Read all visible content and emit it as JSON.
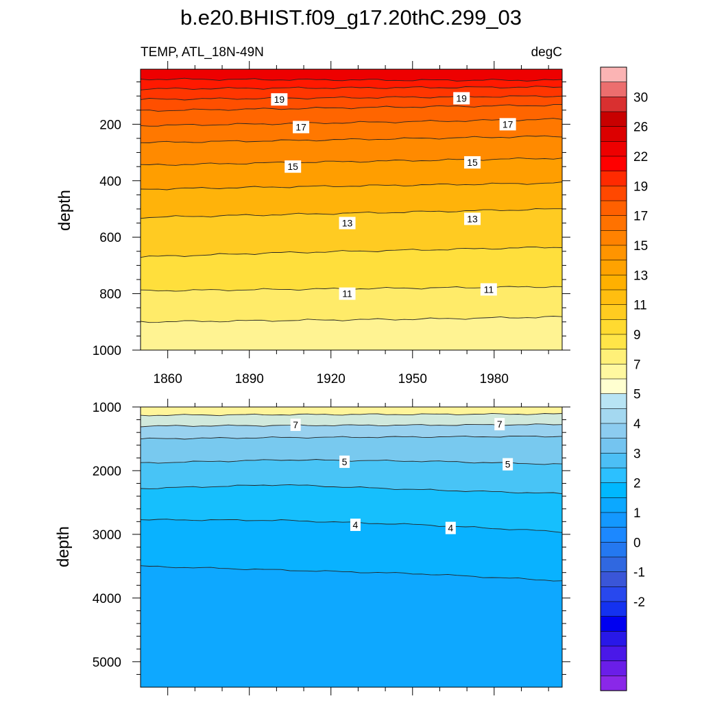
{
  "title": "b.e20.BHIST.f09_g17.20thC.299_03",
  "chart_data": [
    {
      "type": "heatmap",
      "panel": "upper",
      "title_left": "TEMP, ATL_18N-49N",
      "title_right": "degC",
      "xlabel": "",
      "ylabel": "depth",
      "xlim": [
        1850,
        2005
      ],
      "ylim": [
        1000,
        5
      ],
      "x_ticks": [
        "1860",
        "1890",
        "1920",
        "1950",
        "1980"
      ],
      "y_ticks": [
        "200",
        "400",
        "600",
        "800",
        "1000"
      ],
      "contour_levels": [
        22,
        21,
        20,
        19,
        18,
        17,
        16,
        15,
        14,
        13,
        12,
        11,
        10,
        9
      ],
      "contour_lines": [
        {
          "level": 21,
          "depth": [
            40,
            42,
            44,
            44
          ]
        },
        {
          "level": 20,
          "depth": [
            75,
            72,
            70,
            68
          ]
        },
        {
          "level": 19,
          "depth": [
            112,
            108,
            104,
            100
          ]
        },
        {
          "level": 18,
          "depth": [
            152,
            145,
            138,
            132
          ]
        },
        {
          "level": 17,
          "depth": [
            205,
            198,
            190,
            182
          ]
        },
        {
          "level": 16,
          "depth": [
            265,
            258,
            250,
            242
          ]
        },
        {
          "level": 15,
          "depth": [
            345,
            336,
            328,
            320
          ]
        },
        {
          "level": 14,
          "depth": [
            430,
            422,
            415,
            408
          ]
        },
        {
          "level": 13,
          "depth": [
            530,
            520,
            510,
            500
          ]
        },
        {
          "level": 12,
          "depth": [
            670,
            655,
            645,
            635
          ]
        },
        {
          "level": 11,
          "depth": [
            790,
            785,
            780,
            775
          ]
        },
        {
          "level": 10,
          "depth": [
            900,
            895,
            890,
            882
          ]
        }
      ],
      "contour_labels": [
        {
          "text": "19",
          "year": 1901,
          "depth": 112
        },
        {
          "text": "19",
          "year": 1968,
          "depth": 108
        },
        {
          "text": "17",
          "year": 1909,
          "depth": 210
        },
        {
          "text": "17",
          "year": 1985,
          "depth": 200
        },
        {
          "text": "15",
          "year": 1906,
          "depth": 350
        },
        {
          "text": "15",
          "year": 1972,
          "depth": 335
        },
        {
          "text": "13",
          "year": 1926,
          "depth": 550
        },
        {
          "text": "13",
          "year": 1972,
          "depth": 535
        },
        {
          "text": "11",
          "year": 1926,
          "depth": 800
        },
        {
          "text": "11",
          "year": 1978,
          "depth": 785
        }
      ]
    },
    {
      "type": "heatmap",
      "panel": "lower",
      "xlabel": "",
      "ylabel": "depth",
      "xlim": [
        1850,
        2005
      ],
      "ylim": [
        5400,
        1000
      ],
      "y_ticks": [
        "1000",
        "2000",
        "3000",
        "4000",
        "5000"
      ],
      "contour_levels": [
        8,
        7,
        6,
        5,
        4.5,
        4,
        3.5
      ],
      "contour_lines": [
        {
          "level": 8,
          "depth": [
            1130,
            1120,
            1115,
            1110
          ]
        },
        {
          "level": 7,
          "depth": [
            1300,
            1290,
            1285,
            1275
          ]
        },
        {
          "level": 6,
          "depth": [
            1500,
            1480,
            1470,
            1460
          ]
        },
        {
          "level": 5,
          "depth": [
            1880,
            1830,
            1850,
            1900
          ]
        },
        {
          "level": 4.5,
          "depth": [
            2280,
            2220,
            2300,
            2360
          ]
        },
        {
          "level": 4,
          "depth": [
            2770,
            2780,
            2850,
            2960
          ]
        },
        {
          "level": 3.5,
          "depth": [
            3500,
            3560,
            3620,
            3730
          ]
        }
      ],
      "contour_labels": [
        {
          "text": "7",
          "year": 1907,
          "depth": 1280
        },
        {
          "text": "7",
          "year": 1982,
          "depth": 1270
        },
        {
          "text": "5",
          "year": 1925,
          "depth": 1860
        },
        {
          "text": "5",
          "year": 1985,
          "depth": 1900
        },
        {
          "text": "4",
          "year": 1929,
          "depth": 2850
        },
        {
          "text": "4",
          "year": 1964,
          "depth": 2900
        }
      ]
    }
  ],
  "colorbar": {
    "tick_labels": [
      "30",
      "26",
      "22",
      "19",
      "17",
      "15",
      "13",
      "11",
      "9",
      "7",
      "5",
      "4",
      "3",
      "2",
      "1",
      "0",
      "-1",
      "-2"
    ],
    "colors": [
      "#fbb4b4",
      "#ec6e6e",
      "#d93030",
      "#c80000",
      "#dc0000",
      "#ee0000",
      "#ff0000",
      "#ff2a00",
      "#ff4800",
      "#ff6000",
      "#ff7200",
      "#ff8200",
      "#ff9400",
      "#ffa200",
      "#ffb000",
      "#ffbe10",
      "#ffcc20",
      "#ffda30",
      "#ffe548",
      "#fff078",
      "#fff8a0",
      "#ffffd0",
      "#b8e4f4",
      "#a4d8f0",
      "#8cccf0",
      "#74c4f0",
      "#4cbff5",
      "#2cc0ff",
      "#00b8ff",
      "#0ca8ff",
      "#1498ff",
      "#1c88ff",
      "#2478f0",
      "#3068e0",
      "#3a56d8",
      "#2848ee",
      "#1432f0",
      "#0000f0",
      "#2818e8",
      "#4a18e8",
      "#6a1ee8",
      "#8a28e8"
    ]
  }
}
